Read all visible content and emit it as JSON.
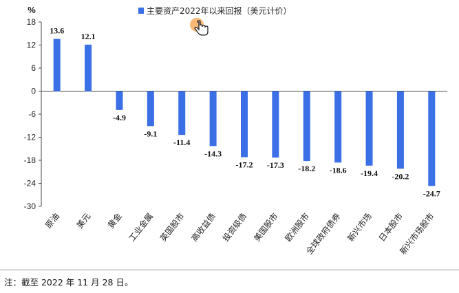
{
  "chart_data": {
    "type": "bar",
    "legend": "主要资产2022年以来回报（美元计价）",
    "ylabel": "%",
    "ylim": [
      -30,
      18
    ],
    "yticks": [
      18,
      12,
      6,
      0,
      -6,
      -12,
      -18,
      -24,
      -30
    ],
    "categories": [
      "原油",
      "美元",
      "黄金",
      "工业金属",
      "英国股市",
      "高收益债",
      "投资级债",
      "美国股市",
      "欧洲股市",
      "全球政府债券",
      "新兴市场",
      "日本股市",
      "新兴市场股市"
    ],
    "values": [
      13.6,
      12.1,
      -4.9,
      -9.1,
      -11.4,
      -14.3,
      -17.2,
      -17.3,
      -18.2,
      -18.6,
      -19.4,
      -20.2,
      -24.7
    ],
    "bar_color": "#3a6fe6",
    "legend_placement": "top-center",
    "grid": false
  },
  "note": "注：截至 2022 年 11 月 28 日。",
  "cursor_icon": "hand-pointer-icon"
}
